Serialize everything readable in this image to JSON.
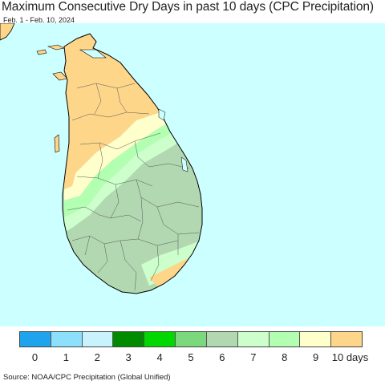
{
  "title": "Maximum Consecutive Dry Days in past 10 days (CPC Precipitation)",
  "subtitle": "Feb. 1 - Feb. 10, 2024",
  "source": "Source: NOAA/CPC Precipitation (Global Unified)",
  "map": {
    "region": "Sri Lanka",
    "colors": {
      "ocean": "#ccffff",
      "land_10": "#fdd68a",
      "land_9": "#ffffcc",
      "land_8": "#b2ffb2",
      "land_7": "#ccffcc",
      "land_6": "#b2d8b2",
      "border": "#555555",
      "coast": "#000000"
    }
  },
  "legend": {
    "categories": [
      {
        "label": "0",
        "color": "#1ea4ec"
      },
      {
        "label": "1",
        "color": "#8ce0fb"
      },
      {
        "label": "2",
        "color": "#c8f2fc"
      },
      {
        "label": "3",
        "color": "#018c00"
      },
      {
        "label": "4",
        "color": "#00d800"
      },
      {
        "label": "5",
        "color": "#7cd87c"
      },
      {
        "label": "6",
        "color": "#b2d8b2"
      },
      {
        "label": "7",
        "color": "#ccffcc"
      },
      {
        "label": "8",
        "color": "#b2ffb2"
      },
      {
        "label": "9",
        "color": "#ffffcc"
      },
      {
        "label": "10 days",
        "color": "#fdd68a"
      }
    ]
  }
}
